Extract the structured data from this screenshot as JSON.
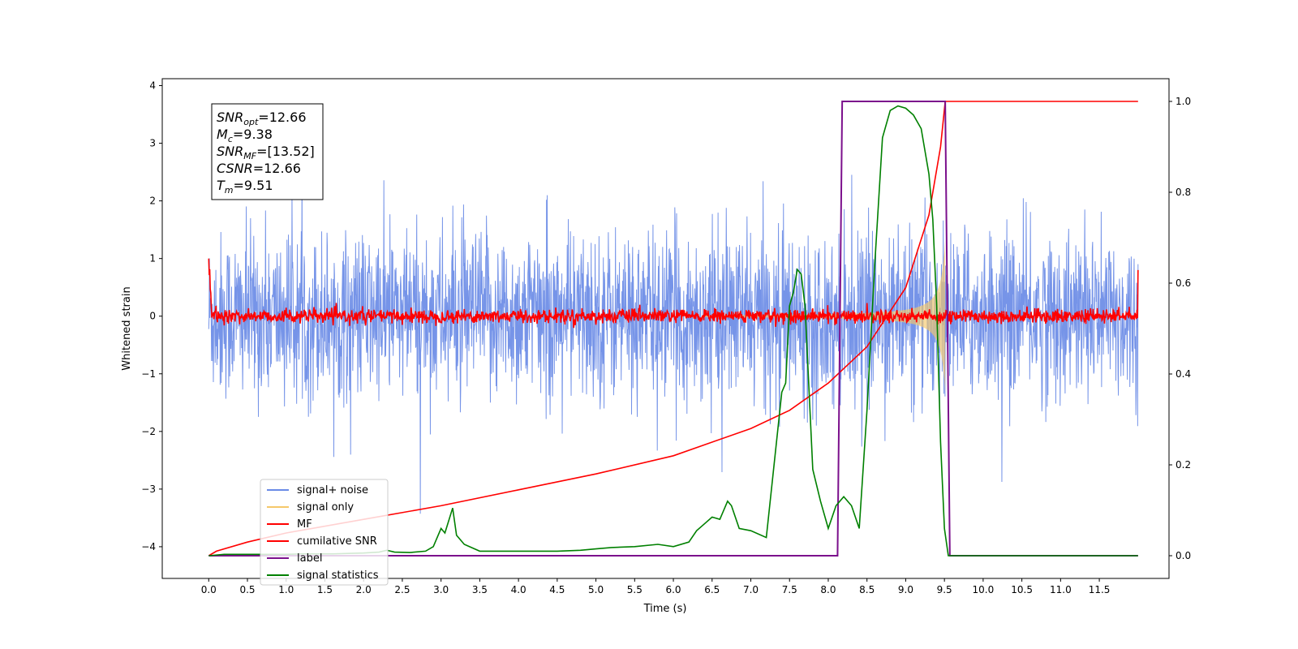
{
  "chart_data": {
    "type": "line",
    "title": "",
    "xlabel": "Time (s)",
    "ylabel": "Whitened strain",
    "xlim": [
      -0.6,
      12.4
    ],
    "ylim": [
      -4.55,
      4.12
    ],
    "ylim_right": [
      -0.05,
      1.05
    ],
    "x_ticks": [
      "0.0",
      "0.5",
      "1.0",
      "1.5",
      "2.0",
      "2.5",
      "3.0",
      "3.5",
      "4.0",
      "4.5",
      "5.0",
      "5.5",
      "6.0",
      "6.5",
      "7.0",
      "7.5",
      "8.0",
      "8.5",
      "9.0",
      "9.5",
      "10.0",
      "10.5",
      "11.0",
      "11.5"
    ],
    "y_ticks": [
      "4",
      "3",
      "2",
      "1",
      "0",
      "−1",
      "−2",
      "−3",
      "−4"
    ],
    "y_ticks_right": [
      "1.0",
      "0.8",
      "0.6",
      "0.4",
      "0.2",
      "0.0"
    ],
    "grid": false,
    "legend_position": "lower-left",
    "annotations": [
      {
        "sym": "SNR",
        "sub": "opt",
        "val": "=12.66"
      },
      {
        "sym": "M",
        "sub": "c",
        "val": "=9.38"
      },
      {
        "sym": "SNR",
        "sub": "MF",
        "val": "=[13.52]"
      },
      {
        "sym": "CSNR",
        "sub": "",
        "val": "=12.66"
      },
      {
        "sym": "T",
        "sub": "m",
        "val": "=9.51"
      }
    ],
    "series": [
      {
        "name": "signal+ noise",
        "color": "#6a8be6",
        "axis": "left",
        "kind": "noise",
        "sigma": 0.72,
        "x_range": [
          0,
          12
        ]
      },
      {
        "name": "signal only",
        "color": "#f5c86a",
        "axis": "left",
        "kind": "chirp",
        "amplitude_at_merger": 1.0,
        "t_merger": 9.51
      },
      {
        "name": "MF",
        "color": "#ff0000",
        "axis": "left",
        "kind": "noise",
        "sigma": 0.06,
        "edge_values": [
          1.0,
          0.8
        ]
      },
      {
        "name": "cumilative SNR",
        "color": "#ff0000",
        "axis": "right",
        "x": [
          0.0,
          0.1,
          0.5,
          1.0,
          2.0,
          3.0,
          4.0,
          5.0,
          6.0,
          7.0,
          7.5,
          8.0,
          8.5,
          9.0,
          9.3,
          9.45,
          9.51,
          10.0,
          11.0,
          12.0
        ],
        "values": [
          0.0,
          0.01,
          0.03,
          0.05,
          0.08,
          0.11,
          0.145,
          0.18,
          0.22,
          0.28,
          0.32,
          0.38,
          0.46,
          0.59,
          0.75,
          0.9,
          1.0,
          1.0,
          1.0,
          1.0
        ]
      },
      {
        "name": "label",
        "color": "#7b0f8c",
        "axis": "right",
        "x": [
          0.0,
          8.12,
          8.18,
          9.51,
          9.57,
          12.0
        ],
        "values": [
          0,
          0,
          1,
          1,
          0,
          0
        ]
      },
      {
        "name": "signal statistics",
        "color": "#008000",
        "axis": "right",
        "x": [
          0.0,
          0.2,
          0.4,
          0.6,
          0.8,
          1.0,
          1.2,
          1.4,
          1.6,
          1.8,
          2.0,
          2.2,
          2.3,
          2.4,
          2.6,
          2.8,
          2.9,
          3.0,
          3.05,
          3.15,
          3.2,
          3.3,
          3.5,
          3.8,
          4.0,
          4.2,
          4.5,
          4.8,
          5.0,
          5.2,
          5.5,
          5.8,
          6.0,
          6.2,
          6.3,
          6.4,
          6.5,
          6.6,
          6.7,
          6.75,
          6.85,
          7.0,
          7.2,
          7.3,
          7.4,
          7.45,
          7.5,
          7.55,
          7.6,
          7.65,
          7.7,
          7.8,
          7.9,
          8.0,
          8.1,
          8.2,
          8.3,
          8.4,
          8.5,
          8.6,
          8.7,
          8.8,
          8.9,
          9.0,
          9.1,
          9.2,
          9.3,
          9.35,
          9.4,
          9.45,
          9.5,
          9.55,
          9.6,
          10.0,
          11.0,
          12.0
        ],
        "values": [
          0.0,
          0.003,
          0.003,
          0.003,
          0.003,
          0.003,
          0.004,
          0.004,
          0.004,
          0.005,
          0.006,
          0.008,
          0.012,
          0.008,
          0.007,
          0.01,
          0.02,
          0.06,
          0.05,
          0.105,
          0.045,
          0.025,
          0.01,
          0.01,
          0.01,
          0.01,
          0.01,
          0.012,
          0.015,
          0.018,
          0.02,
          0.025,
          0.02,
          0.03,
          0.055,
          0.07,
          0.085,
          0.08,
          0.12,
          0.11,
          0.06,
          0.055,
          0.04,
          0.2,
          0.36,
          0.38,
          0.55,
          0.58,
          0.63,
          0.62,
          0.55,
          0.19,
          0.12,
          0.06,
          0.11,
          0.13,
          0.11,
          0.06,
          0.32,
          0.64,
          0.92,
          0.98,
          0.99,
          0.985,
          0.97,
          0.94,
          0.84,
          0.74,
          0.55,
          0.25,
          0.06,
          0.0,
          0.0,
          0.0,
          0.0,
          0.0
        ]
      }
    ]
  }
}
